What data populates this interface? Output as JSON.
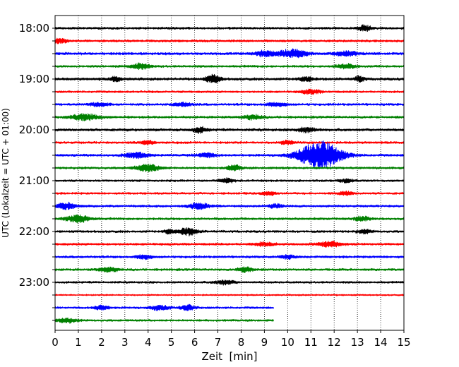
{
  "chart_data": {
    "type": "line",
    "title": "",
    "xlabel": "Zeit  [min]",
    "ylabel": "UTC (Lokalzeit = UTC + 01:00)",
    "xlim": [
      0,
      15
    ],
    "x_ticks": [
      "0",
      "1",
      "2",
      "3",
      "4",
      "5",
      "6",
      "7",
      "8",
      "9",
      "10",
      "11",
      "12",
      "13",
      "14",
      "15"
    ],
    "y_ticks": [
      "18:00",
      "19:00",
      "20:00",
      "21:00",
      "22:00",
      "23:00"
    ],
    "grid": "vertical dotted",
    "colors": [
      "#000000",
      "#ff0000",
      "#0000ff",
      "#008000"
    ],
    "series": [
      {
        "start": "18:00",
        "color": "#000000",
        "amp": 0.22,
        "events": [
          {
            "t": 13.3,
            "a": 0.6,
            "w": 0.3
          }
        ]
      },
      {
        "start": "18:15",
        "color": "#ff0000",
        "amp": 0.22,
        "events": [
          {
            "t": 0.2,
            "a": 0.5,
            "w": 0.3
          }
        ]
      },
      {
        "start": "18:30",
        "color": "#0000ff",
        "amp": 0.25,
        "events": [
          {
            "t": 10.2,
            "a": 0.9,
            "w": 0.6
          },
          {
            "t": 9.0,
            "a": 0.6,
            "w": 0.4
          },
          {
            "t": 12.5,
            "a": 0.5,
            "w": 0.5
          }
        ]
      },
      {
        "start": "18:45",
        "color": "#008000",
        "amp": 0.22,
        "events": [
          {
            "t": 3.7,
            "a": 0.6,
            "w": 0.4
          },
          {
            "t": 12.5,
            "a": 0.5,
            "w": 0.4
          }
        ]
      },
      {
        "start": "19:00",
        "color": "#000000",
        "amp": 0.25,
        "events": [
          {
            "t": 6.8,
            "a": 0.9,
            "w": 0.3
          },
          {
            "t": 2.6,
            "a": 0.6,
            "w": 0.2
          },
          {
            "t": 10.8,
            "a": 0.5,
            "w": 0.3
          },
          {
            "t": 13.1,
            "a": 0.6,
            "w": 0.2
          }
        ]
      },
      {
        "start": "19:15",
        "color": "#ff0000",
        "amp": 0.2,
        "events": [
          {
            "t": 11.0,
            "a": 0.5,
            "w": 0.4
          }
        ]
      },
      {
        "start": "19:30",
        "color": "#0000ff",
        "amp": 0.22,
        "events": [
          {
            "t": 1.9,
            "a": 0.4,
            "w": 0.4
          },
          {
            "t": 5.5,
            "a": 0.4,
            "w": 0.4
          },
          {
            "t": 9.5,
            "a": 0.4,
            "w": 0.4
          }
        ]
      },
      {
        "start": "19:45",
        "color": "#008000",
        "amp": 0.22,
        "events": [
          {
            "t": 1.3,
            "a": 0.7,
            "w": 0.6
          },
          {
            "t": 8.5,
            "a": 0.5,
            "w": 0.4
          }
        ]
      },
      {
        "start": "20:00",
        "color": "#000000",
        "amp": 0.25,
        "events": [
          {
            "t": 6.2,
            "a": 0.6,
            "w": 0.3
          },
          {
            "t": 10.8,
            "a": 0.5,
            "w": 0.4
          }
        ]
      },
      {
        "start": "20:15",
        "color": "#ff0000",
        "amp": 0.22,
        "events": [
          {
            "t": 4.0,
            "a": 0.4,
            "w": 0.3
          },
          {
            "t": 10.0,
            "a": 0.4,
            "w": 0.3
          }
        ]
      },
      {
        "start": "20:30",
        "color": "#0000ff",
        "amp": 0.22,
        "events": [
          {
            "t": 11.4,
            "a": 3.2,
            "w": 0.9
          },
          {
            "t": 3.5,
            "a": 0.6,
            "w": 0.5
          },
          {
            "t": 6.5,
            "a": 0.5,
            "w": 0.4
          }
        ]
      },
      {
        "start": "20:45",
        "color": "#008000",
        "amp": 0.22,
        "events": [
          {
            "t": 4.0,
            "a": 0.8,
            "w": 0.5
          },
          {
            "t": 7.7,
            "a": 0.6,
            "w": 0.3
          }
        ]
      },
      {
        "start": "21:00",
        "color": "#000000",
        "amp": 0.2,
        "events": [
          {
            "t": 7.4,
            "a": 0.5,
            "w": 0.3
          },
          {
            "t": 12.5,
            "a": 0.4,
            "w": 0.3
          }
        ]
      },
      {
        "start": "21:15",
        "color": "#ff0000",
        "amp": 0.2,
        "events": [
          {
            "t": 9.2,
            "a": 0.4,
            "w": 0.3
          },
          {
            "t": 12.5,
            "a": 0.4,
            "w": 0.3
          }
        ]
      },
      {
        "start": "21:30",
        "color": "#0000ff",
        "amp": 0.22,
        "events": [
          {
            "t": 0.5,
            "a": 0.7,
            "w": 0.4
          },
          {
            "t": 6.2,
            "a": 0.7,
            "w": 0.4
          },
          {
            "t": 9.5,
            "a": 0.4,
            "w": 0.3
          }
        ]
      },
      {
        "start": "21:45",
        "color": "#008000",
        "amp": 0.22,
        "events": [
          {
            "t": 1.0,
            "a": 0.8,
            "w": 0.5
          },
          {
            "t": 13.2,
            "a": 0.5,
            "w": 0.3
          }
        ]
      },
      {
        "start": "22:00",
        "color": "#000000",
        "amp": 0.22,
        "events": [
          {
            "t": 5.7,
            "a": 0.8,
            "w": 0.4
          },
          {
            "t": 4.9,
            "a": 0.5,
            "w": 0.2
          },
          {
            "t": 13.3,
            "a": 0.4,
            "w": 0.3
          }
        ]
      },
      {
        "start": "22:15",
        "color": "#ff0000",
        "amp": 0.22,
        "events": [
          {
            "t": 11.8,
            "a": 0.6,
            "w": 0.5
          },
          {
            "t": 9.0,
            "a": 0.4,
            "w": 0.4
          }
        ]
      },
      {
        "start": "22:30",
        "color": "#0000ff",
        "amp": 0.22,
        "events": [
          {
            "t": 3.8,
            "a": 0.5,
            "w": 0.3
          },
          {
            "t": 10.0,
            "a": 0.4,
            "w": 0.3
          }
        ]
      },
      {
        "start": "22:45",
        "color": "#008000",
        "amp": 0.22,
        "events": [
          {
            "t": 2.3,
            "a": 0.5,
            "w": 0.4
          },
          {
            "t": 8.2,
            "a": 0.6,
            "w": 0.3
          }
        ]
      },
      {
        "start": "23:00",
        "color": "#000000",
        "amp": 0.2,
        "events": [
          {
            "t": 7.3,
            "a": 0.5,
            "w": 0.4
          }
        ]
      },
      {
        "start": "23:15",
        "color": "#ff0000",
        "amp": 0.15,
        "events": []
      },
      {
        "start": "23:30",
        "color": "#0000ff",
        "amp": 0.2,
        "events": [
          {
            "t": 2.0,
            "a": 0.5,
            "w": 0.3
          },
          {
            "t": 4.5,
            "a": 0.5,
            "w": 0.4
          },
          {
            "t": 5.7,
            "a": 0.6,
            "w": 0.3
          }
        ],
        "end": 9.4
      },
      {
        "start": "23:45",
        "color": "#008000",
        "amp": 0.2,
        "events": [
          {
            "t": 0.5,
            "a": 0.5,
            "w": 0.4
          }
        ],
        "end": 9.4
      }
    ]
  }
}
